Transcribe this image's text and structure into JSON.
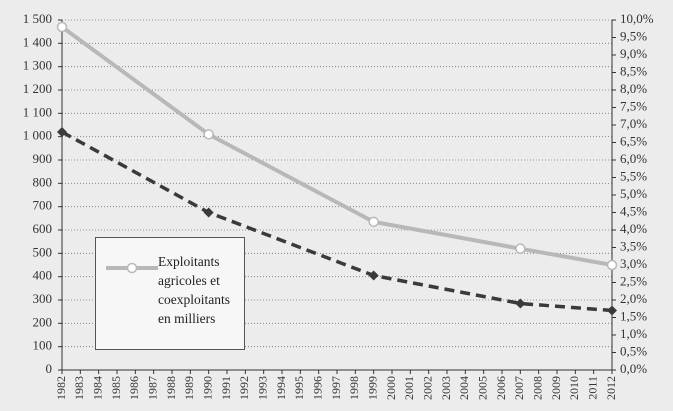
{
  "chart_data": {
    "type": "line",
    "xlim": [
      1982,
      2012
    ],
    "xticks": [
      1982,
      1983,
      1984,
      1985,
      1986,
      1987,
      1988,
      1989,
      1990,
      1991,
      1992,
      1993,
      1994,
      1995,
      1996,
      1997,
      1998,
      1999,
      2000,
      2001,
      2002,
      2003,
      2004,
      2005,
      2006,
      2007,
      2008,
      2009,
      2010,
      2011,
      2012
    ],
    "ylim": [
      0,
      1500
    ],
    "yticks": [
      0,
      100,
      200,
      300,
      400,
      500,
      600,
      700,
      800,
      900,
      {
        "value": 1000,
        "label": "1 000"
      },
      {
        "value": 1100,
        "label": "1 100"
      },
      {
        "value": 1200,
        "label": "1 200"
      },
      {
        "value": 1300,
        "label": "1 300"
      },
      {
        "value": 1400,
        "label": "1 400"
      },
      {
        "value": 1500,
        "label": "1 500"
      }
    ],
    "y2lim": [
      0,
      10
    ],
    "y2ticks": [
      {
        "value": 0,
        "label": "0,0%"
      },
      {
        "value": 0.5,
        "label": "0,5%"
      },
      {
        "value": 1,
        "label": "1,0%"
      },
      {
        "value": 1.5,
        "label": "1,5%"
      },
      {
        "value": 2,
        "label": "2,0%"
      },
      {
        "value": 2.5,
        "label": "2,5%"
      },
      {
        "value": 3,
        "label": "3,0%"
      },
      {
        "value": 3.5,
        "label": "3,5%"
      },
      {
        "value": 4,
        "label": "4,0%"
      },
      {
        "value": 4.5,
        "label": "4,5%"
      },
      {
        "value": 5,
        "label": "5,0%"
      },
      {
        "value": 5.5,
        "label": "5,5%"
      },
      {
        "value": 6,
        "label": "6,0%"
      },
      {
        "value": 6.5,
        "label": "6,5%"
      },
      {
        "value": 7,
        "label": "7,0%"
      },
      {
        "value": 7.5,
        "label": "7,5%"
      },
      {
        "value": 8,
        "label": "8,0%"
      },
      {
        "value": 8.5,
        "label": "8,5%"
      },
      {
        "value": 9,
        "label": "9,0%"
      },
      {
        "value": 9.5,
        "label": "9,5%"
      },
      {
        "value": 10,
        "label": "10,0%"
      }
    ],
    "grid": true,
    "series": [
      {
        "name": "Exploitants agricoles et coexploitants en milliers",
        "color": "#b8b8b8",
        "marker": "circle",
        "axis": "y",
        "x": [
          1982,
          1990,
          1999,
          2007,
          2012
        ],
        "values": [
          1470,
          1010,
          635,
          520,
          450
        ]
      },
      {
        "color": "#3a3a3a",
        "marker": "diamond",
        "dashed": true,
        "axis": "y2",
        "x": [
          1982,
          1990,
          1999,
          2007,
          2012
        ],
        "values": [
          6.8,
          4.5,
          2.7,
          1.9,
          1.7
        ]
      }
    ]
  }
}
